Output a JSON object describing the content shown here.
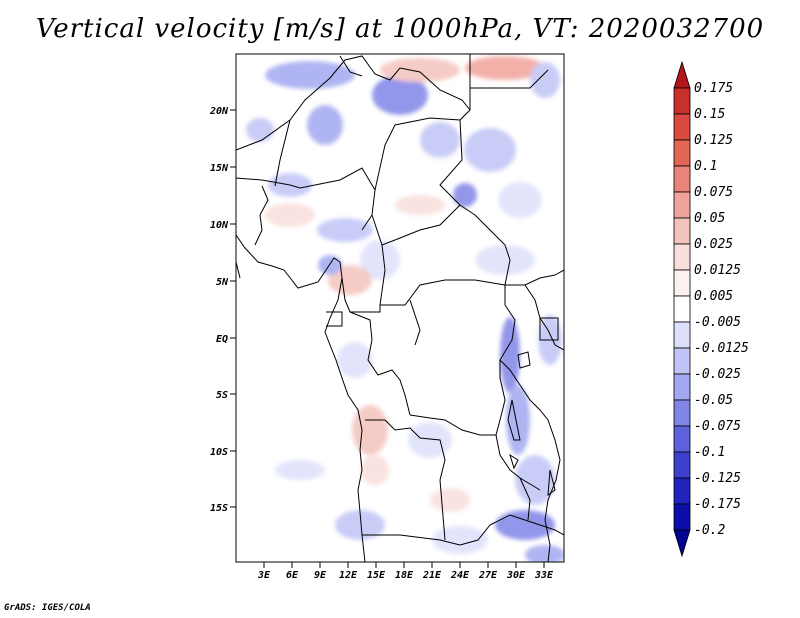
{
  "title": "Vertical velocity [m/s] at 1000hPa, VT: 2020032700",
  "credit": "GrADS: IGES/COLA",
  "map": {
    "lat_ticks": [
      "20N",
      "15N",
      "10N",
      "5N",
      "EQ",
      "5S",
      "10S",
      "15S"
    ],
    "lon_ticks": [
      "3E",
      "6E",
      "9E",
      "12E",
      "15E",
      "18E",
      "21E",
      "24E",
      "27E",
      "30E",
      "33E"
    ]
  },
  "colorbar": {
    "labels": [
      "0.175",
      "0.15",
      "0.125",
      "0.1",
      "0.075",
      "0.05",
      "0.025",
      "0.0125",
      "0.005",
      "-0.005",
      "-0.0125",
      "-0.025",
      "-0.05",
      "-0.075",
      "-0.1",
      "-0.125",
      "-0.175",
      "-0.2"
    ],
    "colors": [
      "#b3161a",
      "#c8302c",
      "#d9493f",
      "#e26654",
      "#e9847a",
      "#efa39a",
      "#f4c2bc",
      "#f9dedb",
      "#fdf1ef",
      "#ffffff",
      "#dde0fb",
      "#c0c4f6",
      "#a2a8f0",
      "#8185e8",
      "#5e61dc",
      "#3d40cf",
      "#2123bd",
      "#0d0ea9",
      "#040494"
    ]
  }
}
